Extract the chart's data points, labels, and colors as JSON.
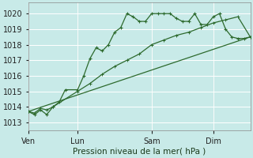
{
  "xlabel": "Pression niveau de la mer( hPa )",
  "bg_color": "#c8eae8",
  "grid_color": "#ffffff",
  "line_color": "#2d6a2d",
  "ylim": [
    1012.5,
    1020.7
  ],
  "day_labels": [
    "Ven",
    "Lun",
    "Sam",
    "Dim"
  ],
  "day_positions": [
    0,
    4,
    10,
    15
  ],
  "yticks": [
    1013,
    1014,
    1015,
    1016,
    1017,
    1018,
    1019,
    1020
  ],
  "series1_x": [
    0,
    0.5,
    1,
    1.5,
    2,
    2.5,
    3,
    4,
    4.5,
    5,
    5.5,
    6,
    6.5,
    7,
    7.5,
    8,
    8.5,
    9,
    9.5,
    10,
    10.5,
    11,
    11.5,
    12,
    12.5,
    13,
    13.5,
    14,
    14.5,
    15,
    15.5,
    16,
    16.5,
    17,
    17.5,
    18
  ],
  "series1_y": [
    1013.7,
    1013.5,
    1013.8,
    1013.5,
    1014.0,
    1014.3,
    1015.1,
    1015.1,
    1016.0,
    1017.1,
    1017.8,
    1017.6,
    1018.0,
    1018.8,
    1019.1,
    1020.0,
    1019.8,
    1019.5,
    1019.5,
    1020.0,
    1020.0,
    1020.0,
    1020.0,
    1019.7,
    1019.5,
    1019.5,
    1020.0,
    1019.3,
    1019.3,
    1019.8,
    1020.0,
    1019.0,
    1018.5,
    1018.4,
    1018.4,
    1018.5
  ],
  "series2_x": [
    0,
    18
  ],
  "series2_y": [
    1013.7,
    1018.5
  ],
  "series3_x": [
    0,
    0.5,
    1,
    1.5,
    2,
    4,
    5,
    6,
    7,
    8,
    9,
    10,
    11,
    12,
    13,
    14,
    15,
    16,
    17,
    18
  ],
  "series3_y": [
    1013.7,
    1013.6,
    1013.9,
    1013.8,
    1014.0,
    1015.0,
    1015.5,
    1016.1,
    1016.6,
    1017.0,
    1017.4,
    1018.0,
    1018.3,
    1018.6,
    1018.8,
    1019.1,
    1019.4,
    1019.6,
    1019.8,
    1018.5
  ],
  "xlim": [
    0,
    18
  ]
}
